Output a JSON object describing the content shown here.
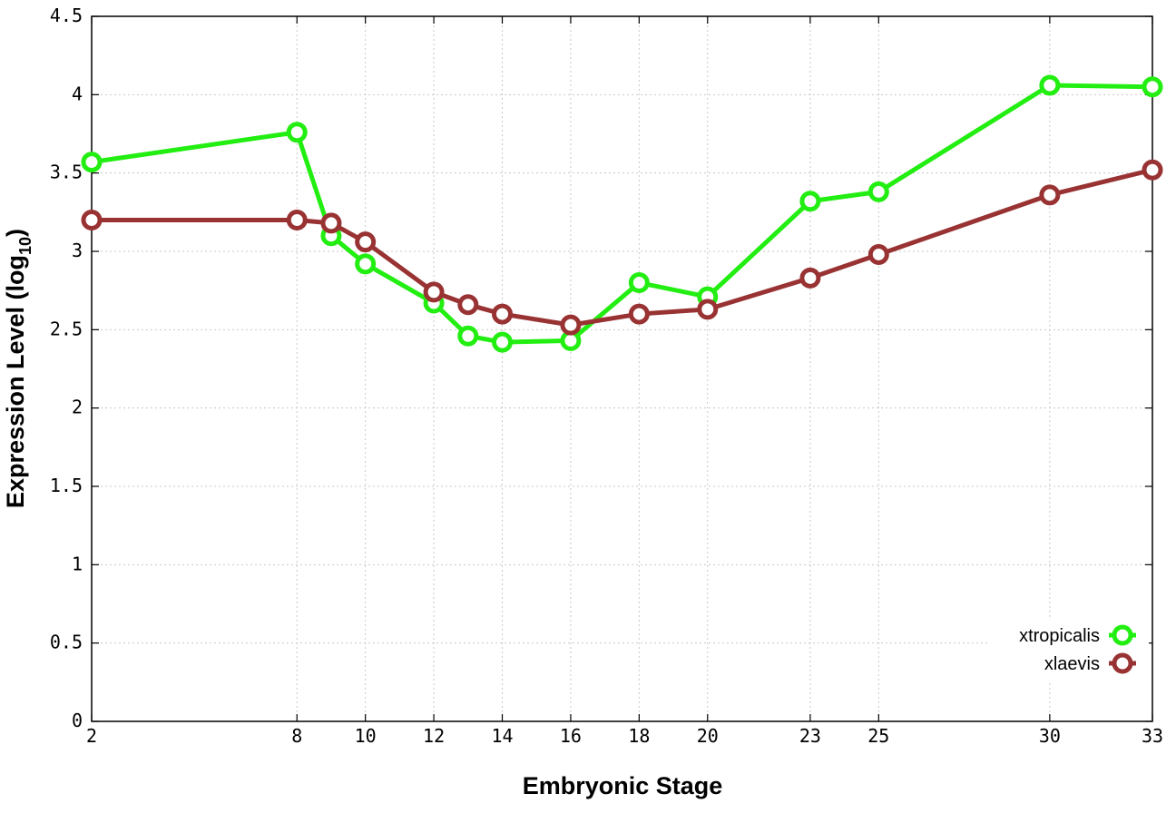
{
  "chart_data": {
    "type": "line",
    "xlabel": "Embryonic Stage",
    "ylabel": "Expression Level (log",
    "ylabel_sub": "10",
    "ylabel_close": ")",
    "x_ticks": [
      "2",
      "8",
      "10",
      "12",
      "14",
      "16",
      "18",
      "20",
      "23",
      "25",
      "30",
      "33"
    ],
    "x_tick_values": [
      2,
      8,
      10,
      12,
      14,
      16,
      18,
      20,
      23,
      25,
      30,
      33
    ],
    "y_ticks": [
      "0",
      "0.5",
      "1",
      "1.5",
      "2",
      "2.5",
      "3",
      "3.5",
      "4",
      "4.5"
    ],
    "y_tick_values": [
      0,
      0.5,
      1,
      1.5,
      2,
      2.5,
      3,
      3.5,
      4,
      4.5
    ],
    "xlim": [
      2,
      33
    ],
    "ylim": [
      0,
      4.5
    ],
    "grid": true,
    "legend_position": "bottom-right",
    "x": [
      2,
      8,
      9,
      10,
      12,
      13,
      14,
      16,
      18,
      20,
      23,
      25,
      30,
      33
    ],
    "series": [
      {
        "name": "xtropicalis",
        "color": "#22ee11",
        "values": [
          3.57,
          3.76,
          3.1,
          2.92,
          2.67,
          2.46,
          2.42,
          2.43,
          2.8,
          2.71,
          3.32,
          3.38,
          4.06,
          4.05
        ]
      },
      {
        "name": "xlaevis",
        "color": "#993333",
        "values": [
          3.2,
          3.2,
          3.18,
          3.06,
          2.74,
          2.66,
          2.6,
          2.53,
          2.6,
          2.63,
          2.83,
          2.98,
          3.36,
          3.52
        ]
      }
    ]
  }
}
